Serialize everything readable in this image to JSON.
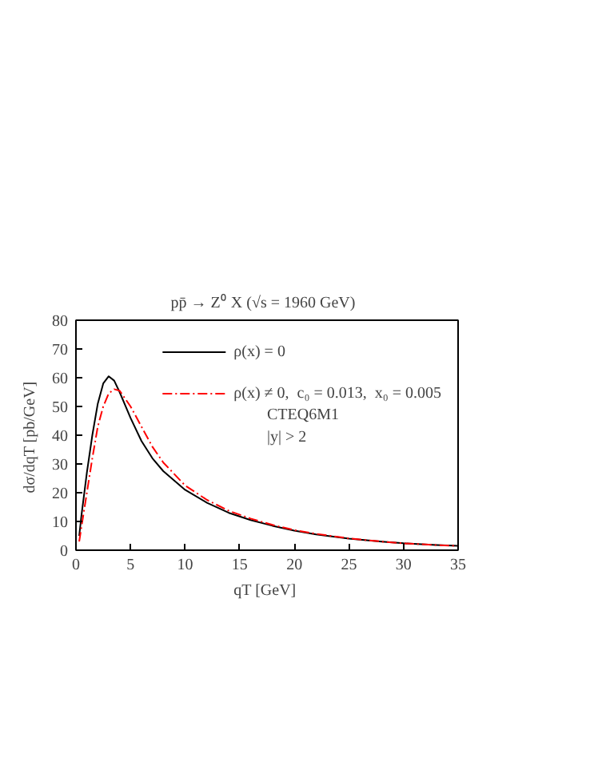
{
  "chart_data": {
    "type": "line",
    "title": "pp̄ → Z⁰ X   (√s = 1960 GeV)",
    "xlabel": "qT  [GeV]",
    "ylabel": "dσ/dqT  [pb/GeV]",
    "xlim": [
      0,
      35
    ],
    "ylim": [
      0,
      80
    ],
    "xticks": [
      0,
      5,
      10,
      15,
      20,
      25,
      30,
      35
    ],
    "yticks": [
      0,
      10,
      20,
      30,
      40,
      50,
      60,
      70,
      80
    ],
    "grid": false,
    "legend": "top right",
    "annotations": [
      "CTEQ6M1",
      "|y|  >  2"
    ],
    "series": [
      {
        "name": "ρ(x) = 0",
        "color": "#000000",
        "line_style": "solid",
        "x": [
          0.3,
          0.5,
          1,
          1.5,
          2,
          2.5,
          3,
          3.5,
          4,
          5,
          6,
          7,
          8,
          10,
          12,
          14,
          16,
          18,
          20,
          22,
          25,
          28,
          30,
          33,
          35
        ],
        "values": [
          5,
          12,
          27,
          40,
          51,
          58,
          60.5,
          59,
          55,
          46,
          38,
          32,
          27.5,
          21,
          16.5,
          13,
          10.5,
          8.5,
          6.8,
          5.5,
          4,
          3,
          2.4,
          1.8,
          1.5
        ]
      },
      {
        "name": "ρ(x) ≠ 0,  c₀ = 0.013,  x₀ = 0.005",
        "color": "#ff0000",
        "line_style": "dashdot",
        "x": [
          0.3,
          0.5,
          1,
          1.5,
          2,
          2.5,
          3,
          3.5,
          4,
          5,
          6,
          7,
          8,
          10,
          12,
          14,
          16,
          18,
          20,
          22,
          25,
          28,
          30,
          33,
          35
        ],
        "values": [
          3,
          8,
          20,
          32,
          43,
          50,
          54.5,
          56,
          55.5,
          50,
          43,
          36,
          30.5,
          22.5,
          17.5,
          13.7,
          11,
          8.8,
          7,
          5.7,
          4.1,
          3,
          2.4,
          1.8,
          1.5
        ]
      }
    ]
  }
}
